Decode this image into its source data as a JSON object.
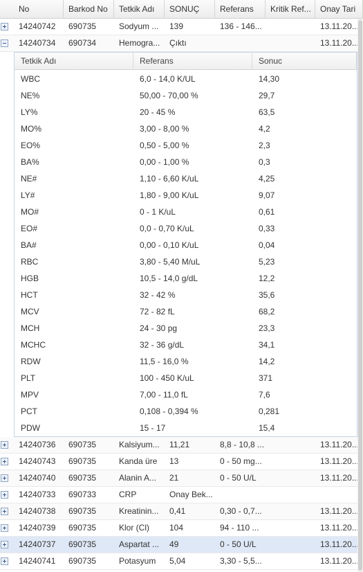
{
  "columns": [
    "No",
    "Barkod No",
    "Tetkik Adı",
    "SONUÇ",
    "Referans",
    "Kritik Ref...",
    "Onay Tari"
  ],
  "rows_top": [
    {
      "no": "14240742",
      "barkod": "690735",
      "tetkik": "Sodyum ...",
      "sonuc": "139",
      "referans": "136 - 146...",
      "kritik": "",
      "onay": "13.11.20..."
    },
    {
      "no": "14240734",
      "barkod": "690734",
      "tetkik": "Hemogra...",
      "sonuc": "Çıktı",
      "referans": "",
      "kritik": "",
      "onay": "13.11.20..."
    }
  ],
  "detail": {
    "columns": [
      "Tetkik Adı",
      "Referans",
      "Sonuc"
    ],
    "rows": [
      {
        "tetkik": "WBC",
        "referans": "6,0 - 14,0 K/UL",
        "sonuc": "14,30"
      },
      {
        "tetkik": "NE%",
        "referans": "50,00 - 70,00 %",
        "sonuc": "29,7"
      },
      {
        "tetkik": "LY%",
        "referans": "20 - 45 %",
        "sonuc": "63,5"
      },
      {
        "tetkik": "MO%",
        "referans": "3,00 - 8,00 %",
        "sonuc": "4,2"
      },
      {
        "tetkik": "EO%",
        "referans": "0,50 - 5,00 %",
        "sonuc": "2,3"
      },
      {
        "tetkik": "BA%",
        "referans": "0,00 - 1,00 %",
        "sonuc": "0,3"
      },
      {
        "tetkik": "NE#",
        "referans": "1,10 - 6,60 K/uL",
        "sonuc": "4,25"
      },
      {
        "tetkik": "LY#",
        "referans": "1,80 - 9,00 K/uL",
        "sonuc": "9,07"
      },
      {
        "tetkik": "MO#",
        "referans": "0 - 1 K/uL",
        "sonuc": "0,61"
      },
      {
        "tetkik": "EO#",
        "referans": "0,0 - 0,70 K/uL",
        "sonuc": "0,33"
      },
      {
        "tetkik": "BA#",
        "referans": "0,00 - 0,10 K/uL",
        "sonuc": "0,04"
      },
      {
        "tetkik": "RBC",
        "referans": "3,80 - 5,40 M/uL",
        "sonuc": "5,23"
      },
      {
        "tetkik": "HGB",
        "referans": "10,5 - 14,0 g/dL",
        "sonuc": "12,2"
      },
      {
        "tetkik": "HCT",
        "referans": "32 - 42 %",
        "sonuc": "35,6"
      },
      {
        "tetkik": "MCV",
        "referans": "72 - 82 fL",
        "sonuc": "68,2"
      },
      {
        "tetkik": "MCH",
        "referans": "24 - 30 pg",
        "sonuc": "23,3"
      },
      {
        "tetkik": "MCHC",
        "referans": "32 - 36 g/dL",
        "sonuc": "34,1"
      },
      {
        "tetkik": "RDW",
        "referans": "11,5 - 16,0 %",
        "sonuc": "14,2"
      },
      {
        "tetkik": "PLT",
        "referans": "100 - 450 K/uL",
        "sonuc": "371"
      },
      {
        "tetkik": "MPV",
        "referans": "7,00 - 11,0 fL",
        "sonuc": "7,6"
      },
      {
        "tetkik": "PCT",
        "referans": "0,108 - 0,394 %",
        "sonuc": "0,281"
      },
      {
        "tetkik": "PDW",
        "referans": "15 - 17",
        "sonuc": "15,4"
      }
    ]
  },
  "rows_bottom": [
    {
      "no": "14240736",
      "barkod": "690735",
      "tetkik": "Kalsiyum...",
      "sonuc": "11,21",
      "referans": "8,8 - 10,8 ...",
      "kritik": "",
      "onay": "13.11.20..."
    },
    {
      "no": "14240743",
      "barkod": "690735",
      "tetkik": "Kanda üre",
      "sonuc": "13",
      "referans": "0 - 50 mg...",
      "kritik": "",
      "onay": "13.11.20..."
    },
    {
      "no": "14240740",
      "barkod": "690735",
      "tetkik": "Alanin A...",
      "sonuc": "21",
      "referans": "0 - 50 U/L",
      "kritik": "",
      "onay": "13.11.20..."
    },
    {
      "no": "14240733",
      "barkod": "690733",
      "tetkik": "CRP",
      "sonuc": "Onay Bek...",
      "referans": "",
      "kritik": "",
      "onay": ""
    },
    {
      "no": "14240738",
      "barkod": "690735",
      "tetkik": "Kreatinin...",
      "sonuc": "0,41",
      "referans": "0,30 - 0,7...",
      "kritik": "",
      "onay": "13.11.20..."
    },
    {
      "no": "14240739",
      "barkod": "690735",
      "tetkik": "Klor (Cl)",
      "sonuc": "104",
      "referans": "94 - 110 ...",
      "kritik": "",
      "onay": "13.11.20..."
    },
    {
      "no": "14240737",
      "barkod": "690735",
      "tetkik": "Aspartat ...",
      "sonuc": "49",
      "referans": "0 - 50 U/L",
      "kritik": "",
      "onay": "13.11.20...",
      "selected": true
    },
    {
      "no": "14240741",
      "barkod": "690735",
      "tetkik": "Potasyum",
      "sonuc": "5,04",
      "referans": "3,30 - 5,5...",
      "kritik": "",
      "onay": "13.11.20..."
    }
  ]
}
